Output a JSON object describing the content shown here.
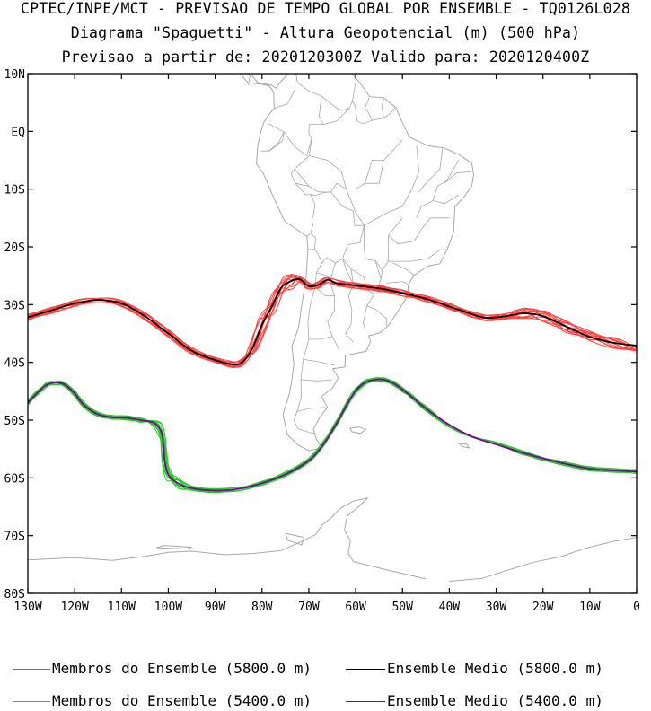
{
  "header": {
    "title_line1": "CPTEC/INPE/MCT - PREVISAO DE TEMPO GLOBAL POR ENSEMBLE - TQ0126L028",
    "title_line2": "Diagrama \"Spaguetti\" - Altura Geopotencial (m) (500 hPa)",
    "title_line3": "Previsao a partir de: 2020120300Z  Valido para: 2020120400Z"
  },
  "colors": {
    "members_5800": "#ff4040",
    "mean_5800": "#000000",
    "members_5400": "#22cc22",
    "mean_5400": "#8000a0",
    "coast": "#a8a8a8"
  },
  "legend": {
    "members_5800": "Membros do Ensemble (5800.0 m)",
    "mean_5800": "Ensemble Medio (5800.0 m)",
    "members_5400": "Membros do Ensemble (5400.0 m)",
    "mean_5400": "Ensemble Medio (5400.0 m)"
  },
  "chart_data": {
    "type": "line",
    "title": "",
    "xlabel": "",
    "ylabel": "",
    "xlim": [
      -130,
      0
    ],
    "ylim": [
      -80,
      10
    ],
    "x_ticks": [
      -130,
      -120,
      -110,
      -100,
      -90,
      -80,
      -70,
      -60,
      -50,
      -40,
      -30,
      -20,
      -10,
      0
    ],
    "x_tick_labels": [
      "130W",
      "120W",
      "110W",
      "100W",
      "90W",
      "80W",
      "70W",
      "60W",
      "50W",
      "40W",
      "30W",
      "20W",
      "10W",
      "0"
    ],
    "y_ticks": [
      10,
      0,
      -10,
      -20,
      -30,
      -40,
      -50,
      -60,
      -70,
      -80
    ],
    "y_tick_labels": [
      "10N",
      "EQ",
      "10S",
      "20S",
      "30S",
      "40S",
      "50S",
      "60S",
      "70S",
      "80S"
    ],
    "series": [
      {
        "name": "Ensemble Medio (5800.0 m)",
        "role": "mean_5800",
        "lon": [
          -130,
          -125,
          -120,
          -115,
          -110,
          -105,
          -100,
          -95,
          -90,
          -86,
          -84,
          -82,
          -80,
          -78,
          -76,
          -74,
          -72,
          -70,
          -68,
          -66,
          -64,
          -60,
          -55,
          -50,
          -45,
          -40,
          -35,
          -32,
          -28,
          -24,
          -20,
          -15,
          -10,
          -5,
          0
        ],
        "lat": [
          -32.2,
          -31.0,
          -29.8,
          -29.2,
          -29.8,
          -32.0,
          -35.0,
          -38.0,
          -39.6,
          -40.4,
          -39.8,
          -37.5,
          -33.5,
          -30.5,
          -27.2,
          -26.0,
          -25.6,
          -26.8,
          -26.6,
          -25.7,
          -26.3,
          -26.7,
          -27.2,
          -28.0,
          -29.0,
          -30.3,
          -31.7,
          -32.3,
          -32.0,
          -31.5,
          -32.0,
          -33.8,
          -35.6,
          -36.6,
          -37.1
        ]
      },
      {
        "name": "Ensemble Medio (5400.0 m)",
        "role": "mean_5400",
        "lon": [
          -130,
          -128,
          -126,
          -124,
          -122,
          -120,
          -118,
          -115,
          -112,
          -109,
          -106,
          -103,
          -101.5,
          -101,
          -100.8,
          -100,
          -98,
          -95,
          -90,
          -85,
          -80,
          -75,
          -70,
          -67,
          -64,
          -62,
          -60,
          -58,
          -56,
          -54,
          -52,
          -50,
          -48,
          -45,
          -40,
          -35,
          -30,
          -25,
          -20,
          -15,
          -10,
          -5,
          0
        ],
        "lat": [
          -47.0,
          -45.3,
          -43.9,
          -43.5,
          -43.9,
          -45.4,
          -47.4,
          -49.0,
          -49.5,
          -49.6,
          -50.0,
          -50.5,
          -52.0,
          -54.5,
          -57.0,
          -59.5,
          -60.9,
          -61.8,
          -62.2,
          -61.9,
          -60.9,
          -59.4,
          -57.0,
          -54.3,
          -50.5,
          -47.5,
          -44.9,
          -43.5,
          -43.0,
          -43.0,
          -43.6,
          -44.7,
          -46.0,
          -48.0,
          -50.8,
          -52.9,
          -54.2,
          -55.5,
          -56.6,
          -57.6,
          -58.4,
          -58.7,
          -58.9
        ]
      }
    ],
    "ensemble_members_5800": 11,
    "ensemble_members_5400": 11
  }
}
